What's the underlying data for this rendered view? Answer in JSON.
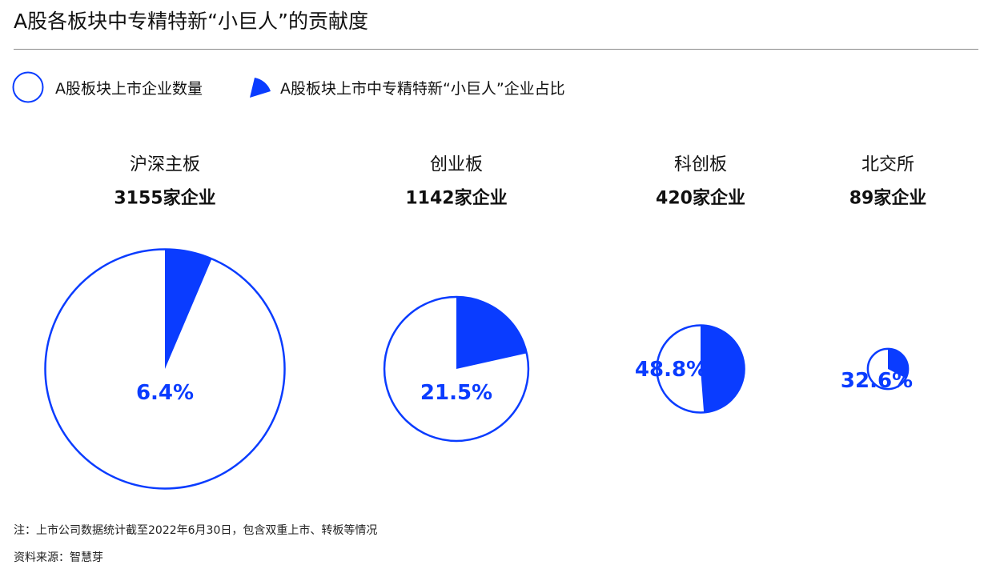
{
  "title": "A股各板块中专精特新“小巨人”的贡献度",
  "legend": {
    "total_label": "A股板块上市企业数量",
    "share_label": "A股板块上市中专精特新“小巨人”企业占比"
  },
  "colors": {
    "accent": "#0a3cff",
    "text": "#111111",
    "rule": "#8a8a8a"
  },
  "chart_data": {
    "type": "pie",
    "title": "A股各板块中专精特新“小巨人”的贡献度",
    "legend": [
      "A股板块上市企业数量",
      "A股板块上市中专精特新“小巨人”企业占比"
    ],
    "legend_placement": "top-left",
    "unit_count": "家企业",
    "series": [
      {
        "board": "沪深主板",
        "count": 3155,
        "count_label": "3155家企业",
        "share": 6.4,
        "share_label": "6.4%"
      },
      {
        "board": "创业板",
        "count": 1142,
        "count_label": "1142家企业",
        "share": 21.5,
        "share_label": "21.5%"
      },
      {
        "board": "科创板",
        "count": 420,
        "count_label": "420家企业",
        "share": 48.8,
        "share_label": "48.8%"
      },
      {
        "board": "北交所",
        "count": 89,
        "count_label": "89家企业",
        "share": 32.6,
        "share_label": "32.6%"
      }
    ]
  },
  "footer": {
    "note": "注：上市公司数据统计截至2022年6月30日，包含双重上市、转板等情况",
    "source": "资料来源：智慧芽"
  }
}
